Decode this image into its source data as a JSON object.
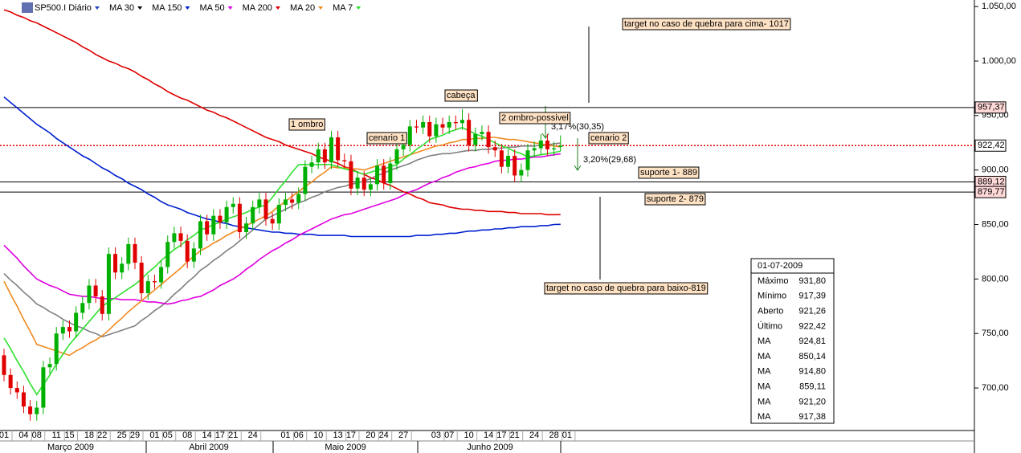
{
  "chart_data": {
    "type": "candlestick",
    "categories": [
      "01",
      null,
      null,
      "04",
      null,
      "08",
      null,
      null,
      "11",
      null,
      "15",
      null,
      null,
      "18",
      null,
      "22",
      null,
      null,
      "25",
      null,
      "29",
      null,
      null,
      "01",
      null,
      "05",
      null,
      null,
      "08",
      null,
      null,
      "14",
      null,
      "17",
      null,
      "21",
      null,
      null,
      "24",
      null,
      null,
      null,
      null,
      "01",
      null,
      "06",
      null,
      null,
      "10",
      null,
      null,
      "13",
      null,
      "17",
      null,
      null,
      "20",
      null,
      "24",
      null,
      null,
      "27",
      null,
      null,
      null,
      null,
      "03",
      null,
      "07",
      null,
      null,
      "10",
      null,
      null,
      "14",
      null,
      "17",
      null,
      "21",
      null,
      null,
      "24",
      null,
      null,
      "28",
      null,
      "01"
    ],
    "months": [
      "Março 2009",
      "Abril 2009",
      "Maio 2009",
      "Junho 2009"
    ],
    "ohlc": {
      "name": "SP500.I Diário",
      "color": "#2040c0",
      "up_color": "#00b000",
      "down_color": "#e00000",
      "open": [
        730,
        712,
        700,
        696,
        683,
        676,
        682,
        719,
        722,
        750,
        756,
        752,
        769,
        778,
        794,
        784,
        768,
        823,
        806,
        814,
        832,
        815,
        787,
        798,
        797,
        811,
        834,
        842,
        835,
        816,
        828,
        853,
        841,
        858,
        852,
        866,
        869,
        843,
        851,
        866,
        873,
        855,
        851,
        868,
        873,
        870,
        878,
        903,
        907,
        919,
        907,
        930,
        909,
        908,
        883,
        893,
        882,
        887,
        904,
        888,
        906,
        919,
        923,
        940,
        939,
        944,
        931,
        942,
        939,
        944,
        943,
        946,
        923,
        933,
        935,
        921,
        918,
        903,
        913,
        895,
        900,
        918,
        920,
        927,
        919,
        921.26,
        null
      ],
      "high": [
        736,
        718,
        706,
        702,
        689,
        688,
        725,
        728,
        756,
        762,
        762,
        775,
        784,
        800,
        800,
        790,
        829,
        829,
        820,
        838,
        838,
        821,
        804,
        804,
        817,
        840,
        848,
        848,
        841,
        834,
        859,
        859,
        864,
        864,
        872,
        875,
        875,
        857,
        872,
        879,
        879,
        861,
        874,
        879,
        879,
        884,
        909,
        913,
        925,
        925,
        936,
        936,
        915,
        914,
        899,
        899,
        893,
        910,
        910,
        912,
        925,
        929,
        946,
        946,
        950,
        950,
        948,
        948,
        950,
        950,
        956,
        952,
        939,
        941,
        941,
        927,
        924,
        919,
        919,
        906,
        924,
        926,
        933,
        933,
        926,
        931.8,
        null
      ],
      "low": [
        706,
        694,
        690,
        677,
        670,
        670,
        676,
        713,
        716,
        744,
        746,
        746,
        763,
        772,
        778,
        762,
        762,
        800,
        800,
        808,
        809,
        781,
        781,
        791,
        791,
        805,
        828,
        829,
        810,
        810,
        822,
        835,
        835,
        846,
        846,
        860,
        837,
        837,
        845,
        860,
        849,
        845,
        845,
        862,
        864,
        864,
        872,
        897,
        901,
        901,
        901,
        903,
        902,
        877,
        877,
        876,
        876,
        881,
        882,
        882,
        900,
        913,
        917,
        934,
        933,
        925,
        925,
        933,
        933,
        937,
        937,
        917,
        917,
        927,
        915,
        912,
        897,
        897,
        889,
        889,
        894,
        912,
        914,
        913,
        913,
        917.39,
        null
      ],
      "close": [
        712,
        700,
        696,
        683,
        676,
        682,
        719,
        722,
        750,
        756,
        752,
        769,
        778,
        794,
        784,
        768,
        823,
        806,
        814,
        832,
        815,
        787,
        798,
        797,
        811,
        834,
        842,
        835,
        816,
        828,
        853,
        841,
        858,
        852,
        866,
        869,
        843,
        851,
        866,
        873,
        855,
        851,
        868,
        873,
        870,
        878,
        903,
        907,
        919,
        907,
        930,
        909,
        908,
        883,
        893,
        882,
        887,
        904,
        888,
        906,
        919,
        923,
        940,
        939,
        944,
        931,
        942,
        939,
        944,
        943,
        946,
        923,
        933,
        935,
        921,
        918,
        903,
        913,
        895,
        900,
        918,
        920,
        927,
        919,
        920,
        922.42,
        null
      ]
    },
    "series": [
      {
        "name": "MA 30",
        "color": "#000000",
        "line_color": "#808080",
        "values": [
          805,
          799,
          794,
          788,
          783,
          777,
          774,
          770,
          767,
          763,
          760,
          757,
          755,
          752,
          750,
          747,
          749,
          751,
          753,
          755,
          757,
          762,
          766,
          771,
          775,
          780,
          786,
          791,
          797,
          802,
          808,
          812,
          817,
          821,
          826,
          830,
          835,
          840,
          845,
          850,
          855,
          858,
          861,
          864,
          867,
          870,
          872,
          875,
          877,
          880,
          882,
          884,
          885,
          887,
          888,
          890,
          892,
          895,
          897,
          900,
          902,
          904,
          906,
          909,
          911,
          913,
          914,
          915,
          915,
          916,
          917,
          918,
          918,
          919,
          919,
          920,
          920,
          921,
          921,
          922,
          922,
          922,
          923,
          923,
          924,
          924.81,
          null
        ]
      },
      {
        "name": "MA 150",
        "color": "#0020d0",
        "values": [
          967,
          962,
          957,
          952,
          947,
          942,
          938,
          934,
          929,
          925,
          921,
          917,
          913,
          910,
          906,
          902,
          899,
          895,
          892,
          888,
          885,
          882,
          878,
          875,
          871,
          868,
          866,
          864,
          861,
          859,
          857,
          855,
          854,
          852,
          851,
          849,
          848,
          847,
          846,
          845,
          844,
          843,
          843,
          842,
          842,
          841,
          841,
          841,
          840,
          840,
          840,
          840,
          840,
          839,
          839,
          839,
          839,
          839,
          839,
          839,
          839,
          839,
          839,
          840,
          840,
          840,
          841,
          841,
          842,
          842,
          843,
          844,
          844,
          845,
          845,
          846,
          846,
          847,
          847,
          848,
          848,
          848,
          849,
          849,
          850,
          850.14,
          null
        ]
      },
      {
        "name": "MA 50",
        "color": "#e000e0",
        "values": [
          831,
          825,
          819,
          812,
          806,
          800,
          797,
          794,
          792,
          789,
          786,
          785,
          784,
          784,
          783,
          782,
          782,
          782,
          781,
          781,
          781,
          780,
          779,
          779,
          778,
          777,
          778,
          780,
          781,
          783,
          784,
          787,
          790,
          794,
          797,
          800,
          804,
          809,
          813,
          818,
          822,
          826,
          829,
          833,
          836,
          840,
          843,
          846,
          849,
          852,
          855,
          857,
          859,
          860,
          862,
          864,
          866,
          868,
          870,
          872,
          874,
          877,
          880,
          882,
          885,
          888,
          890,
          893,
          895,
          898,
          900,
          902,
          903,
          905,
          906,
          908,
          909,
          909,
          910,
          910,
          911,
          912,
          912,
          913,
          914,
          914.8,
          null
        ]
      },
      {
        "name": "MA 200",
        "color": "#e00000",
        "values": [
          1047,
          1045,
          1042,
          1040,
          1037,
          1035,
          1032,
          1029,
          1026,
          1023,
          1020,
          1017,
          1013,
          1010,
          1006,
          1003,
          1000,
          998,
          995,
          993,
          990,
          986,
          983,
          979,
          976,
          972,
          969,
          966,
          964,
          961,
          958,
          955,
          953,
          950,
          948,
          945,
          942,
          939,
          936,
          933,
          930,
          928,
          926,
          923,
          921,
          919,
          917,
          915,
          912,
          910,
          908,
          906,
          903,
          901,
          898,
          896,
          893,
          891,
          888,
          886,
          883,
          880,
          878,
          875,
          873,
          870,
          869,
          868,
          866,
          865,
          864,
          864,
          863,
          863,
          862,
          862,
          862,
          861,
          861,
          860,
          860,
          860,
          860,
          859,
          859,
          859.11,
          null
        ]
      },
      {
        "name": "MA 20",
        "color": "#f08a20",
        "values": [
          798,
          786,
          775,
          763,
          752,
          740,
          738,
          736,
          734,
          732,
          730,
          734,
          737,
          741,
          744,
          748,
          753,
          759,
          764,
          770,
          775,
          780,
          785,
          790,
          795,
          800,
          805,
          810,
          816,
          821,
          826,
          829,
          833,
          836,
          840,
          843,
          846,
          849,
          852,
          855,
          858,
          862,
          867,
          871,
          876,
          880,
          885,
          889,
          894,
          898,
          903,
          902,
          902,
          901,
          901,
          900,
          902,
          904,
          906,
          908,
          910,
          912,
          914,
          916,
          918,
          920,
          922,
          923,
          925,
          926,
          928,
          928,
          929,
          929,
          930,
          930,
          929,
          928,
          928,
          927,
          926,
          925,
          924,
          923,
          922,
          921.2,
          null
        ]
      },
      {
        "name": "MA 7",
        "color": "#30e030",
        "values": [
          746,
          736,
          725,
          715,
          704,
          694,
          703,
          712,
          722,
          731,
          740,
          747,
          754,
          761,
          768,
          775,
          779,
          783,
          787,
          791,
          795,
          800,
          806,
          811,
          817,
          822,
          827,
          831,
          836,
          840,
          845,
          847,
          850,
          852,
          855,
          857,
          859,
          861,
          864,
          866,
          868,
          875,
          883,
          890,
          898,
          905,
          905,
          905,
          905,
          905,
          905,
          903,
          901,
          900,
          898,
          896,
          898,
          900,
          901,
          903,
          905,
          910,
          914,
          919,
          923,
          928,
          930,
          932,
          935,
          937,
          939,
          936,
          933,
          931,
          928,
          925,
          922,
          920,
          917,
          915,
          912,
          913,
          914,
          915,
          916,
          917.38,
          null
        ]
      }
    ],
    "ylim": [
      661,
      1056
    ],
    "yticks": [
      {
        "value": 700,
        "label": "700,00"
      },
      {
        "value": 750,
        "label": "750,00"
      },
      {
        "value": 800,
        "label": "800,00"
      },
      {
        "value": 850,
        "label": "850,00"
      },
      {
        "value": 900,
        "label": "900,00"
      },
      {
        "value": 950,
        "label": "950,00"
      },
      {
        "value": 1000,
        "label": "1.000,00"
      },
      {
        "value": 1050,
        "label": "1.050,00"
      }
    ],
    "levels": [
      {
        "value": 957.37,
        "label": "957,37",
        "color": "#000000",
        "dotted": false
      },
      {
        "value": 922.42,
        "label": "922,42",
        "color": "#e00000",
        "dotted": true
      },
      {
        "value": 889.12,
        "label": "889,12",
        "color": "#000000",
        "dotted": false
      },
      {
        "value": 879.77,
        "label": "879,77",
        "color": "#000000",
        "dotted": false
      }
    ],
    "annotations": [
      {
        "text": "target no caso de quebra para cima- 1017",
        "boxed": true
      },
      {
        "text": "1 ombro",
        "boxed": true
      },
      {
        "text": "cenario 1",
        "boxed": true
      },
      {
        "text": "cabeça",
        "boxed": true
      },
      {
        "text": "2 ombro-possivel",
        "boxed": true
      },
      {
        "text": "3,17%(30,35)",
        "boxed": false
      },
      {
        "text": "cenario 2",
        "boxed": true
      },
      {
        "text": "3,20%(29,68)",
        "boxed": false
      },
      {
        "text": "suporte 1- 889",
        "boxed": true
      },
      {
        "text": "suporte 2- 879",
        "boxed": true
      },
      {
        "text": "target no caso de quebra para baixo-819",
        "boxed": true
      }
    ],
    "info_box": {
      "date": "01-07-2009",
      "rows": [
        {
          "label": "Máximo",
          "value": "931,80",
          "color": "#000000"
        },
        {
          "label": "Mínimo",
          "value": "917,39",
          "color": "#000000"
        },
        {
          "label": "Aberto",
          "value": "921,26",
          "color": "#000000"
        },
        {
          "label": "Último",
          "value": "922,42",
          "color": "#000000"
        },
        {
          "label": "MA",
          "value": "924,81",
          "color": "#000000"
        },
        {
          "label": "MA",
          "value": "850,14",
          "color": "#0020d0"
        },
        {
          "label": "MA",
          "value": "914,80",
          "color": "#e000e0"
        },
        {
          "label": "MA",
          "value": "859,11",
          "color": "#e00000"
        },
        {
          "label": "MA",
          "value": "921,20",
          "color": "#f08a20"
        },
        {
          "label": "MA",
          "value": "917,38",
          "color": "#30e030"
        }
      ]
    }
  }
}
